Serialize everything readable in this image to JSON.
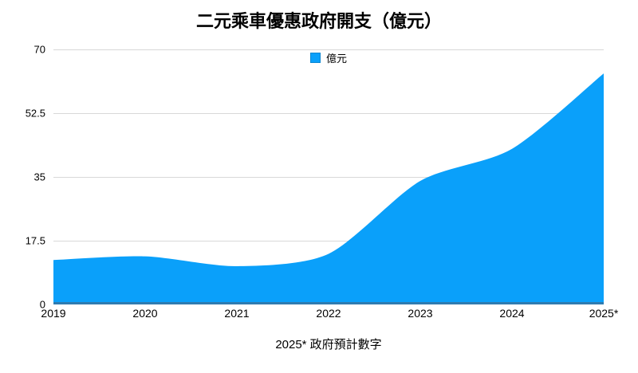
{
  "header": {
    "title": "二元乘車優惠政府開支（億元）"
  },
  "legend": {
    "label": "億元",
    "swatch_color": "#0AA0FA",
    "swatch_border_color": "#0C87D2"
  },
  "footer": {
    "note": "2025* 政府預計數字"
  },
  "chart_data": {
    "type": "area",
    "title": "二元乘車優惠政府開支（億元）",
    "categories": [
      "2019",
      "2020",
      "2021",
      "2022",
      "2023",
      "2024",
      "2025*"
    ],
    "series": [
      {
        "name": "億元",
        "values": [
          12.2,
          13.2,
          10.5,
          13.9,
          33.9,
          42.7,
          63.4
        ]
      }
    ],
    "xlabel": "",
    "ylabel": "",
    "ylim": [
      0,
      70
    ],
    "yticks": [
      0,
      17.5,
      35,
      52.5,
      70
    ],
    "grid": true,
    "legend_position": "top-center",
    "footnote": "2025* 政府預計數字",
    "colors": {
      "area_fill": "#0AA0FA",
      "area_bottom_stroke": "#2F7BB0",
      "gridline": "#D8D8D8",
      "text": "#000000"
    }
  }
}
